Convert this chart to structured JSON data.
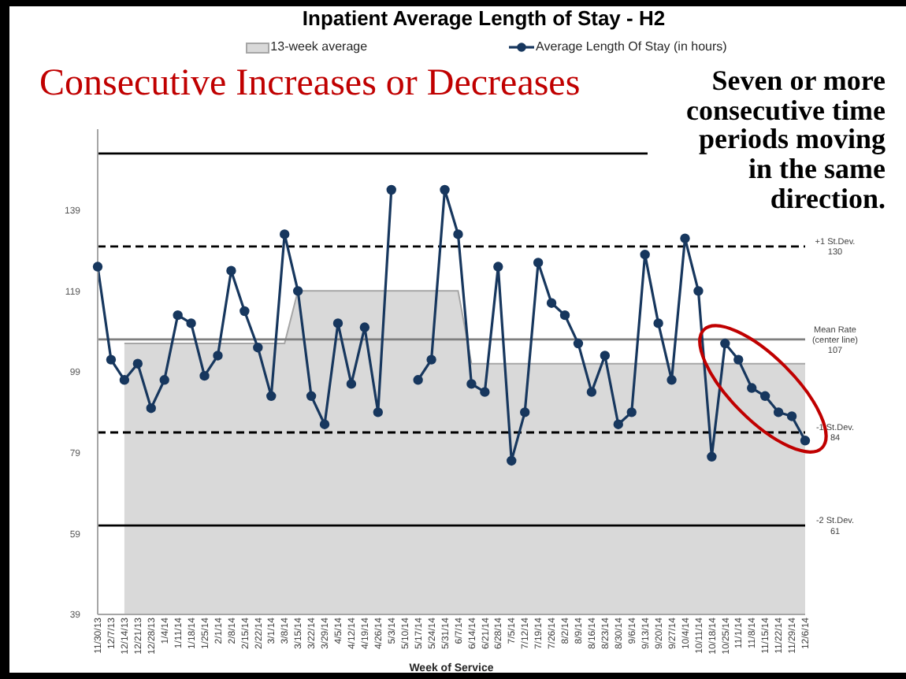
{
  "chart_data": {
    "type": "line",
    "title": "Inpatient Average Length of Stay - H2",
    "subtitle": "Consecutive Increases or Decreases",
    "xlabel": "Week of Service",
    "annotations": [
      "Seven or more consecutive time periods moving in the same direction."
    ],
    "categories": [
      "11/30/13",
      "12/7/13",
      "12/14/13",
      "12/21/13",
      "12/28/13",
      "1/4/14",
      "1/11/14",
      "1/18/14",
      "1/25/14",
      "2/1/14",
      "2/8/14",
      "2/15/14",
      "2/22/14",
      "3/1/14",
      "3/8/14",
      "3/15/14",
      "3/22/14",
      "3/29/14",
      "4/5/14",
      "4/12/14",
      "4/19/14",
      "4/26/14",
      "5/3/14",
      "5/10/14",
      "5/17/14",
      "5/24/14",
      "5/31/14",
      "6/7/14",
      "6/14/14",
      "6/21/14",
      "6/28/14",
      "7/5/14",
      "7/12/14",
      "7/19/14",
      "7/26/14",
      "8/2/14",
      "8/9/14",
      "8/16/14",
      "8/23/14",
      "8/30/14",
      "9/6/14",
      "9/13/14",
      "9/20/14",
      "9/27/14",
      "10/4/14",
      "10/11/14",
      "10/18/14",
      "10/25/14",
      "11/1/14",
      "11/8/14",
      "11/15/14",
      "11/22/14",
      "11/29/14",
      "12/6/14"
    ],
    "series": [
      {
        "name": "13-week average",
        "type": "area",
        "color": "#d9d9d9",
        "values": [
          null,
          null,
          106,
          106,
          106,
          106,
          106,
          106,
          106,
          106,
          106,
          106,
          106,
          106,
          106,
          119,
          119,
          119,
          119,
          119,
          119,
          119,
          119,
          119,
          119,
          119,
          119,
          119,
          101,
          101,
          101,
          101,
          101,
          101,
          101,
          101,
          101,
          101,
          101,
          101,
          101,
          101,
          101,
          101,
          101,
          101,
          101,
          101,
          101,
          101,
          101,
          101,
          101,
          101
        ]
      },
      {
        "name": "Average Length Of Stay (in hours)",
        "color": "#17375e",
        "marker": "circle",
        "line_style": "solid",
        "values": [
          125,
          102,
          97,
          101,
          90,
          97,
          113,
          111,
          98,
          103,
          124,
          114,
          105,
          93,
          133,
          119,
          93,
          86,
          111,
          96,
          110,
          89,
          144,
          null,
          97,
          102,
          144,
          133,
          96,
          94,
          125,
          77,
          89,
          126,
          116,
          113,
          106,
          94,
          103,
          86,
          89,
          128,
          111,
          97,
          132,
          119,
          78,
          106,
          102,
          95,
          93,
          89,
          88,
          82
        ]
      }
    ],
    "ylim": [
      39,
      159
    ],
    "yticks": [
      39,
      59,
      79,
      99,
      119,
      139
    ],
    "ref_lines": [
      {
        "axis": "y",
        "value": 153,
        "label": null,
        "color": "#000000",
        "line_style": "solid"
      },
      {
        "axis": "y",
        "value": 130,
        "label": "+1 St.Dev.\n130",
        "color": "#000000",
        "line_style": "dashed"
      },
      {
        "axis": "y",
        "value": 107,
        "label": "Mean Rate\n(center line)\n107",
        "color": "#7f7f7f",
        "line_style": "solid"
      },
      {
        "axis": "y",
        "value": 84,
        "label": "-1 St.Dev.\n84",
        "color": "#000000",
        "line_style": "dashed"
      },
      {
        "axis": "y",
        "value": 61,
        "label": "-2 St.Dev.\n61",
        "color": "#000000",
        "line_style": "solid"
      }
    ],
    "legend": "top",
    "grid": false
  }
}
